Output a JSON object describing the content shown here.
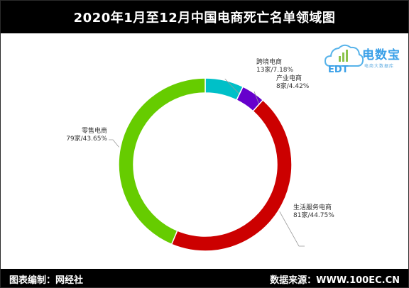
{
  "title": "2020年1月至12月中国电商死亡名单领域图",
  "logo": {
    "name": "电数宝",
    "subtitle": "电商大数据库",
    "letters": "EDT",
    "icon": "cloud-chart-logo-icon"
  },
  "footer": {
    "editor": "图表编制：网经社",
    "source": "数据来源：WWW.100EC.CN"
  },
  "colors": {
    "header_bg": "#000000",
    "header_text": "#ffffff",
    "leader_line": "#999999"
  },
  "chart_data": {
    "type": "pie",
    "donut": true,
    "title": "2020年1月至12月中国电商死亡名单领域图",
    "series": [
      {
        "name": "跨境电商",
        "value": 13,
        "percent": 7.18,
        "label": "13家/7.18%",
        "color": "#00c0c8"
      },
      {
        "name": "产业电商",
        "value": 8,
        "percent": 4.42,
        "label": "8家/4.42%",
        "color": "#6600cc"
      },
      {
        "name": "生活服务电商",
        "value": 81,
        "percent": 44.75,
        "label": "81家/44.75%",
        "color": "#cc0000"
      },
      {
        "name": "零售电商",
        "value": 79,
        "percent": 43.65,
        "label": "79家/43.65%",
        "color": "#66cc00"
      }
    ]
  }
}
